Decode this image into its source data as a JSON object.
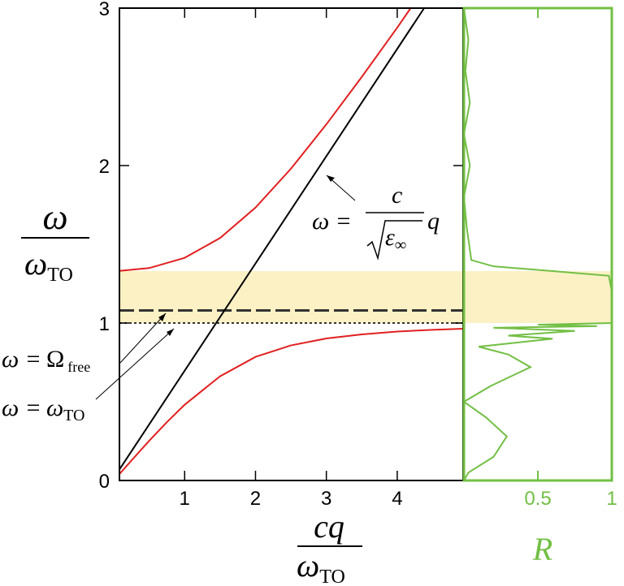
{
  "chart_data": [
    {
      "type": "line",
      "xlabel": {
        "numerator": "cq",
        "denominator": "ω",
        "denominator_sub": "TO"
      },
      "ylabel": {
        "numerator": "ω",
        "denominator": "ω",
        "denominator_sub": "TO"
      },
      "xlim": [
        0.08,
        4.93
      ],
      "ylim": [
        0,
        3
      ],
      "xticks": [
        1,
        2,
        3,
        4
      ],
      "yticks": [
        0,
        1,
        2,
        3
      ],
      "band": [
        1.0,
        1.33
      ],
      "band_color": "#fbf1c4",
      "hlines": [
        {
          "value": 1.08,
          "style": "dashed",
          "color": "#333333"
        },
        {
          "value": 1.0,
          "style": "dotted",
          "color": "#333333"
        }
      ],
      "series": [
        {
          "color": "#e02020",
          "x": [
            0.08,
            0.25,
            0.5,
            0.75,
            1,
            1.5,
            2,
            2.5,
            3,
            3.5,
            4,
            4.5,
            4.93
          ],
          "values": [
            0.041,
            0.127,
            0.252,
            0.371,
            0.481,
            0.662,
            0.785,
            0.858,
            0.902,
            0.928,
            0.946,
            0.957,
            0.964
          ]
        },
        {
          "color": "#e02020",
          "x": [
            0.08,
            0.5,
            1,
            1.5,
            2,
            2.5,
            3,
            3.5,
            4,
            4.19
          ],
          "values": [
            1.331,
            1.349,
            1.414,
            1.54,
            1.733,
            1.98,
            2.262,
            2.563,
            2.876,
            3.0
          ]
        },
        {
          "color": "#000000",
          "x": [
            0.08,
            4.38
          ],
          "values": [
            0.07,
            3.0
          ]
        }
      ],
      "annotations": [
        {
          "lhs": "ω =",
          "numerator": "c",
          "denominator": "ε",
          "denominator_sub": "∞",
          "factor": "q"
        },
        {
          "lhs": "ω =",
          "symbol": "Ω",
          "sub": "free"
        },
        {
          "lhs": "ω =",
          "symbol": "ω",
          "sub": "TO"
        }
      ]
    },
    {
      "type": "line",
      "xlabel": "R",
      "xlim": [
        0,
        1
      ],
      "ylim": [
        0,
        3
      ],
      "xticks": [
        0.5,
        1
      ],
      "band": [
        1.0,
        1.33
      ],
      "band_color": "#fbf1c4",
      "axis_color": "#72bf44",
      "series": [
        {
          "color": "#72bf44",
          "y": [
            0.0,
            0.05,
            0.15,
            0.28,
            0.4,
            0.5,
            0.6,
            0.72,
            0.8,
            0.85,
            0.88,
            0.9,
            0.92,
            0.95,
            0.97,
            0.98,
            0.99,
            1.0,
            1.05,
            1.2,
            1.3,
            1.33,
            1.36,
            1.4,
            1.6,
            1.8,
            2.0,
            2.2,
            2.4,
            2.6,
            2.8,
            3.0
          ],
          "values": [
            0.0,
            0.03,
            0.2,
            0.29,
            0.15,
            0.0,
            0.18,
            0.45,
            0.3,
            0.1,
            0.4,
            0.6,
            0.3,
            0.75,
            0.2,
            0.9,
            0.5,
            1.0,
            1.0,
            1.0,
            0.98,
            0.6,
            0.2,
            0.05,
            0.02,
            0.0,
            0.04,
            0.0,
            0.04,
            0.01,
            0.03,
            0.0
          ]
        }
      ]
    }
  ]
}
